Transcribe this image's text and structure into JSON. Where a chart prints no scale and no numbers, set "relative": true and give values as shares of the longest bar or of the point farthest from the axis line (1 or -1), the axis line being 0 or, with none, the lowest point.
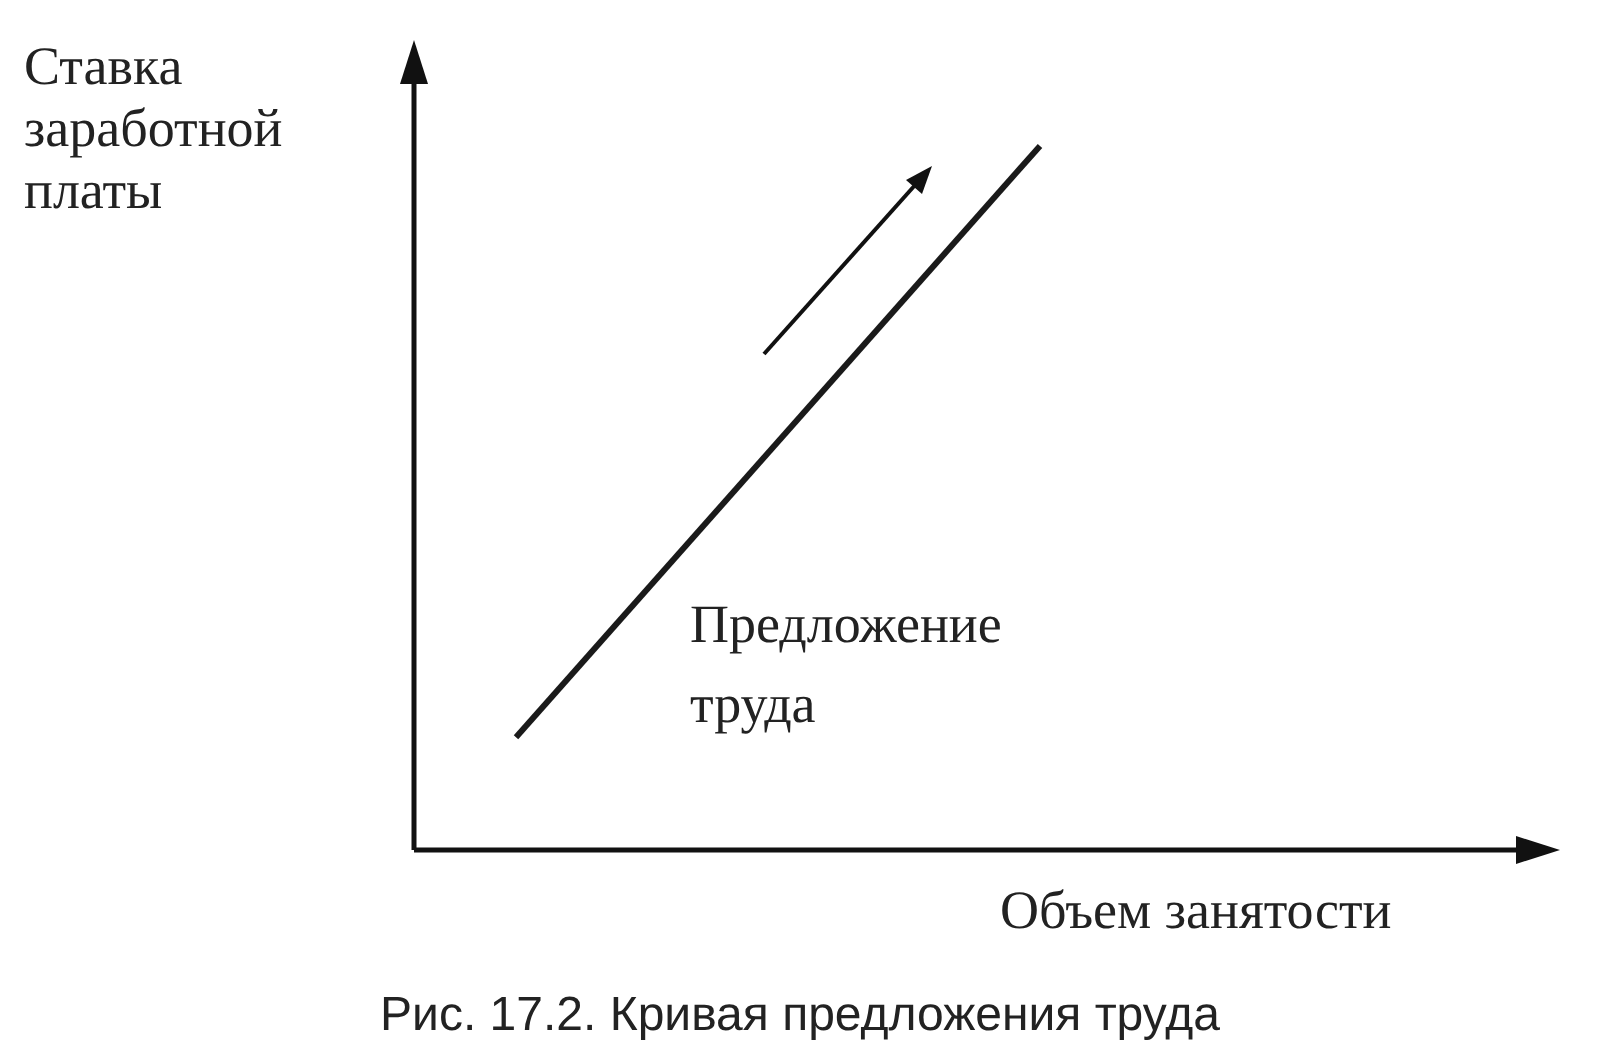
{
  "chart_data": {
    "type": "line",
    "title": "Рис. 17.2. Кривая предложения труда",
    "xlabel": "Объем занятости",
    "ylabel": "Ставка заработной платы",
    "relative": true,
    "categories": [
      null,
      null
    ],
    "marker": "none",
    "legend": false,
    "series": [
      {
        "name": "Предложение труда",
        "color": "#1a1a1a",
        "values": [
          0.16,
          1
        ]
      }
    ]
  }
}
